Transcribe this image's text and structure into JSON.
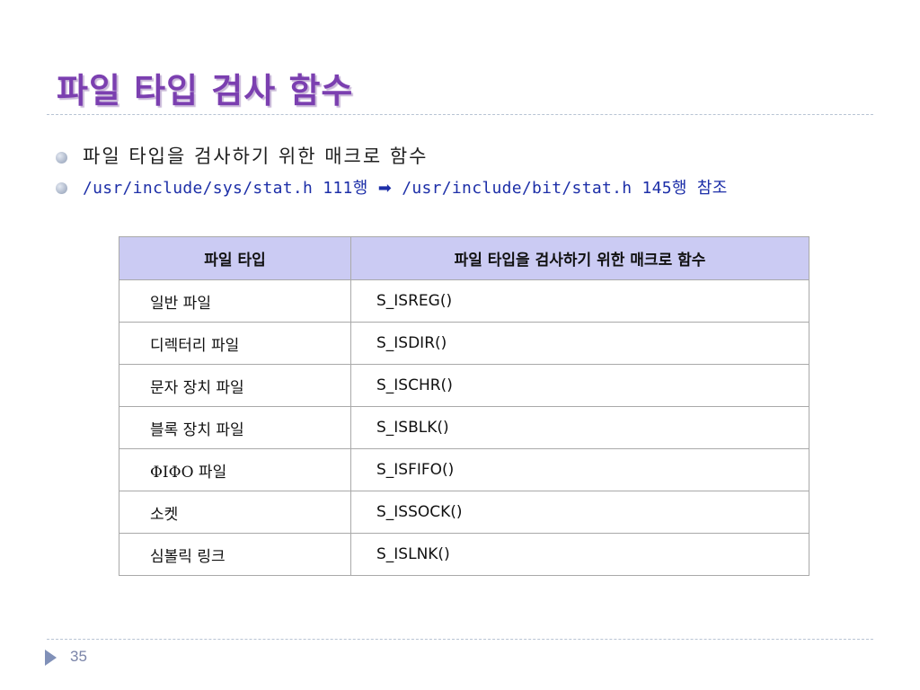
{
  "slide": {
    "title": "파일 타입 검사 함수",
    "page_number": "35"
  },
  "bullets": [
    {
      "text": "파일 타입을 검사하기 위한 매크로 함수"
    },
    {
      "text_before": "/usr/include/sys/stat.h 111행",
      "arrow": "➡",
      "text_after": "/usr/include/bit/stat.h 145행 참조"
    }
  ],
  "table": {
    "headers": [
      "파일 타입",
      "파일 타입을 검사하기 위한 매크로 함수"
    ],
    "rows": [
      [
        "일반 파일",
        "S_ISREG()"
      ],
      [
        "디렉터리 파일",
        "S_ISDIR()"
      ],
      [
        "문자 장치 파일",
        "S_ISCHR()"
      ],
      [
        "블록 장치 파일",
        "S_ISBLK()"
      ],
      [
        "ΦΙΦΟ 파일",
        "S_ISFIFO()"
      ],
      [
        "소켓",
        "S_ISSOCK()"
      ],
      [
        "심볼릭 링크",
        "S_ISLNK()"
      ]
    ]
  },
  "colors": {
    "title": "#7b3fb0",
    "header_bg": "#cbcbf3",
    "link_text": "#1d2fa8"
  },
  "icons": {
    "bullet": "bullet-dot-icon",
    "arrow": "right-arrow-icon",
    "page": "triangle-right-icon"
  }
}
